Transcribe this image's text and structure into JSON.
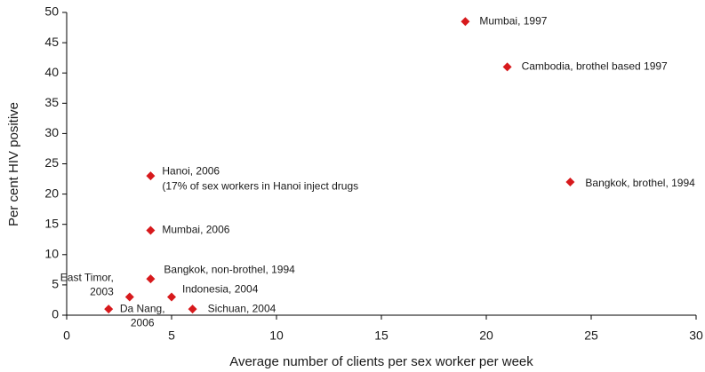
{
  "chart_data": {
    "type": "scatter",
    "x_label": "Average number of clients per sex worker per week",
    "y_label": "Per cent HIV positive",
    "x": [
      19,
      21,
      24,
      4,
      4,
      4,
      5,
      3,
      2,
      6
    ],
    "values": [
      48.5,
      41,
      22,
      23,
      14,
      6,
      3,
      3,
      1,
      1
    ],
    "labels": [
      [
        "Mumbai, 1997"
      ],
      [
        "Cambodia, brothel based 1997"
      ],
      [
        "Bangkok, brothel, 1994"
      ],
      [
        "Hanoi, 2006",
        "(17% of sex workers in Hanoi inject drugs"
      ],
      [
        "Mumbai, 2006"
      ],
      [
        "Bangkok, non-brothel, 1994"
      ],
      [
        "Indonesia, 2004"
      ],
      [
        "East Timor,",
        "2003"
      ],
      [
        "Da Nang,",
        "2006"
      ],
      [
        "Sichuan, 2004"
      ]
    ],
    "color": "#d7191c",
    "xlim": [
      0,
      30
    ],
    "xticks": [
      0,
      5,
      10,
      15,
      20,
      25,
      30
    ],
    "ylim": [
      0,
      50
    ],
    "yticks": [
      0,
      5,
      10,
      15,
      20,
      25,
      30,
      35,
      40,
      45,
      50
    ],
    "grid": false
  }
}
